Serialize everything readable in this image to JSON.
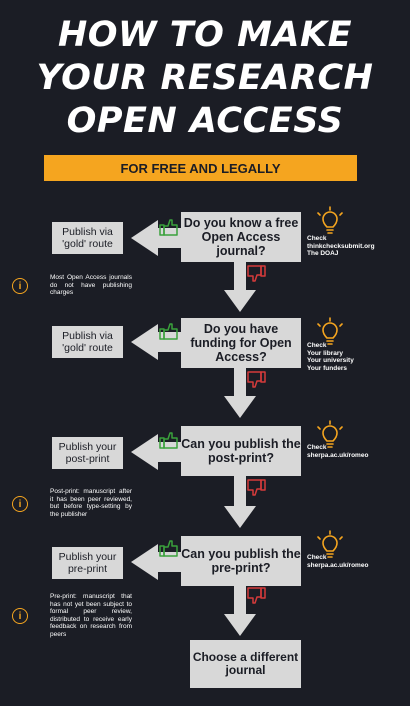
{
  "title": {
    "line1": "HOW TO MAKE",
    "line2": "YOUR RESEARCH",
    "line3": "OPEN ACCESS"
  },
  "banner": "FOR FREE AND LEGALLY",
  "steps": [
    {
      "question": "Do you know a free Open Access journal?",
      "action": "Publish via 'gold' route",
      "check": [
        "Check",
        "thinkchecksubmit.org",
        "The DOAJ"
      ],
      "info": "Most Open Access journals do not have publishing charges"
    },
    {
      "question": "Do you have funding for Open Access?",
      "action": "Publish via 'gold' route",
      "check": [
        "Check",
        "Your library",
        "Your university",
        "Your funders"
      ]
    },
    {
      "question": "Can you publish the post-print?",
      "action": "Publish your post-print",
      "check": [
        "Check",
        "sherpa.ac.uk/romeo"
      ],
      "info": "Post-print: manuscript after it has been peer reviewed, but before type-setting by the publisher"
    },
    {
      "question": "Can you publish the pre-print?",
      "action": "Publish your pre-print",
      "check": [
        "Check",
        "sherpa.ac.uk/romeo"
      ],
      "info": "Pre-print: manuscript that has not yet been subject to formal peer review, distributed to receive early feedback on research from peers"
    }
  ],
  "final": "Choose a different journal",
  "colors": {
    "background": "#1b1d25",
    "accent": "#f5a51f",
    "box": "#d8d8d8",
    "yes": "#3aa13c",
    "no": "#d63b3b"
  },
  "icons": {
    "yes": "thumbs-up-icon",
    "no": "thumbs-down-icon",
    "tip": "lightbulb-icon",
    "info": "info-icon"
  }
}
